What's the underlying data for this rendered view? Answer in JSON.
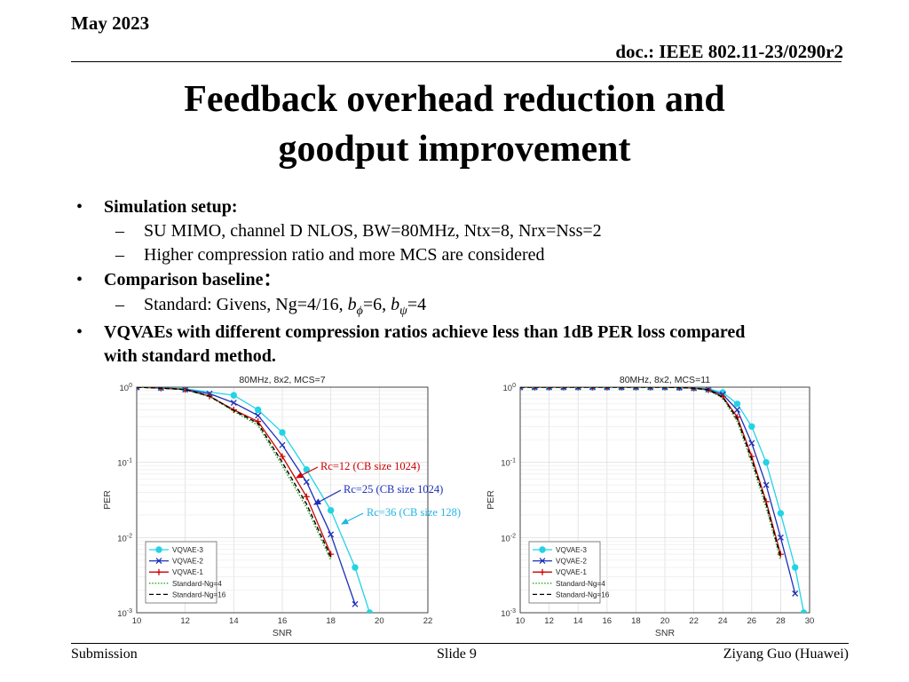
{
  "header": {
    "date": "May 2023",
    "doc": "doc.: IEEE 802.11-23/0290r2"
  },
  "title": {
    "line1": "Feedback overhead reduction and",
    "line2": "goodput improvement"
  },
  "bullets": {
    "setup_label": "Simulation setup:",
    "setup_items": [
      "SU MIMO, channel D NLOS, BW=80MHz, Ntx=8, Nrx=Nss=2",
      "Higher compression ratio and more MCS are considered"
    ],
    "baseline_label": "Comparison baseline：",
    "baseline_item_prefix": "Standard: Givens, Ng=4/16, ",
    "b_phi": "b",
    "phi_sub": "ϕ",
    "phi_val": "=6, ",
    "b_psi": "b",
    "psi_sub": "ψ",
    "psi_val": "=4",
    "result_line1": "VQVAEs with different compression ratios achieve less than 1dB PER loss compared",
    "result_line2": "with standard method."
  },
  "annotations": {
    "rc12": "Rc=12 (CB size 1024)",
    "rc25": "Rc=25 (CB size 1024)",
    "rc36": "Rc=36 (CB size 128)"
  },
  "colors": {
    "rc12": "#cc0000",
    "rc25": "#1c2fb8",
    "rc36": "#22b5e6"
  },
  "footer": {
    "left": "Submission",
    "center": "Slide 9",
    "right": "Ziyang Guo (Huawei)"
  },
  "chart_data": [
    {
      "type": "line",
      "title": "80MHz, 8x2, MCS=7",
      "xlabel": "SNR",
      "ylabel": "PER",
      "xlim": [
        10,
        22
      ],
      "ylim": [
        0.001,
        1
      ],
      "yscale": "log",
      "xticks": [
        10,
        12,
        14,
        16,
        18,
        20,
        22
      ],
      "yticks": [
        {
          "value": 1,
          "label": "10",
          "exp": "0"
        },
        {
          "value": 0.1,
          "label": "10",
          "exp": "-1"
        },
        {
          "value": 0.01,
          "label": "10",
          "exp": "-2"
        },
        {
          "value": 0.001,
          "label": "10",
          "exp": "-3"
        }
      ],
      "grid": true,
      "legend_position": "bottom-left",
      "series": [
        {
          "name": "VQVAE-3",
          "color": "#22d3e6",
          "marker": "circle",
          "style": "solid",
          "x": [
            10,
            11,
            12,
            14,
            15,
            16,
            17,
            18,
            19,
            19.6
          ],
          "y": [
            1,
            0.98,
            0.95,
            0.78,
            0.5,
            0.25,
            0.08,
            0.023,
            0.004,
            0.001
          ]
        },
        {
          "name": "VQVAE-2",
          "color": "#1c2fb8",
          "marker": "x",
          "style": "solid",
          "x": [
            10,
            11,
            12,
            13,
            14,
            15,
            16,
            17,
            18,
            19
          ],
          "y": [
            1,
            0.98,
            0.93,
            0.82,
            0.62,
            0.42,
            0.17,
            0.055,
            0.011,
            0.0013
          ]
        },
        {
          "name": "VQVAE-1",
          "color": "#cc0000",
          "marker": "plus",
          "style": "solid",
          "x": [
            10,
            11,
            12,
            13,
            14,
            15,
            16,
            17,
            18
          ],
          "y": [
            1,
            0.97,
            0.93,
            0.76,
            0.5,
            0.35,
            0.12,
            0.035,
            0.006
          ]
        },
        {
          "name": "Standard-Ng=4",
          "color": "#1fa81f",
          "marker": "none",
          "style": "dotted",
          "x": [
            10,
            11,
            12,
            13,
            14,
            15,
            16,
            17,
            18
          ],
          "y": [
            1,
            0.97,
            0.93,
            0.75,
            0.48,
            0.31,
            0.09,
            0.025,
            0.005
          ]
        },
        {
          "name": "Standard-Ng=16",
          "color": "#000000",
          "marker": "none",
          "style": "dashed",
          "x": [
            10,
            11,
            12,
            13,
            14,
            15,
            16,
            17,
            18
          ],
          "y": [
            1,
            0.97,
            0.93,
            0.76,
            0.49,
            0.33,
            0.1,
            0.028,
            0.0055
          ]
        }
      ]
    },
    {
      "type": "line",
      "title": "80MHz, 8x2, MCS=11",
      "xlabel": "SNR",
      "ylabel": "PER",
      "xlim": [
        10,
        30
      ],
      "ylim": [
        0.001,
        1
      ],
      "yscale": "log",
      "xticks": [
        10,
        12,
        14,
        16,
        18,
        20,
        22,
        24,
        26,
        28,
        30
      ],
      "yticks": [
        {
          "value": 1,
          "label": "10",
          "exp": "0"
        },
        {
          "value": 0.1,
          "label": "10",
          "exp": "-1"
        },
        {
          "value": 0.01,
          "label": "10",
          "exp": "-2"
        },
        {
          "value": 0.001,
          "label": "10",
          "exp": "-3"
        }
      ],
      "grid": true,
      "legend_position": "bottom-left",
      "series": [
        {
          "name": "VQVAE-3",
          "color": "#22d3e6",
          "marker": "circle",
          "style": "solid",
          "x": [
            10,
            11,
            12,
            13,
            14,
            15,
            16,
            17,
            18,
            19,
            20,
            21,
            22,
            23,
            24,
            25,
            26,
            27,
            28,
            29,
            29.6
          ],
          "y": [
            1,
            1,
            1,
            1,
            1,
            1,
            1,
            1,
            1,
            1,
            1,
            0.99,
            0.98,
            0.95,
            0.85,
            0.6,
            0.3,
            0.1,
            0.021,
            0.004,
            0.001
          ]
        },
        {
          "name": "VQVAE-2",
          "color": "#1c2fb8",
          "marker": "x",
          "style": "solid",
          "x": [
            10,
            11,
            12,
            13,
            14,
            15,
            16,
            17,
            18,
            19,
            20,
            21,
            22,
            23,
            24,
            25,
            26,
            27,
            28,
            29
          ],
          "y": [
            1,
            1,
            1,
            1,
            1,
            1,
            1,
            1,
            1,
            1,
            1,
            0.99,
            0.97,
            0.93,
            0.8,
            0.5,
            0.18,
            0.05,
            0.01,
            0.0018
          ]
        },
        {
          "name": "VQVAE-1",
          "color": "#cc0000",
          "marker": "plus",
          "style": "solid",
          "x": [
            10,
            11,
            12,
            13,
            14,
            15,
            16,
            17,
            18,
            19,
            20,
            21,
            22,
            23,
            24,
            25,
            26,
            27,
            28
          ],
          "y": [
            1,
            1,
            1,
            1,
            1,
            1,
            1,
            1,
            1,
            1,
            1,
            0.99,
            0.97,
            0.92,
            0.75,
            0.4,
            0.12,
            0.03,
            0.006
          ]
        },
        {
          "name": "Standard-Ng=4",
          "color": "#1fa81f",
          "marker": "none",
          "style": "dotted",
          "x": [
            10,
            11,
            12,
            13,
            14,
            15,
            16,
            17,
            18,
            19,
            20,
            21,
            22,
            23,
            24,
            25,
            26,
            27,
            28
          ],
          "y": [
            1,
            1,
            1,
            1,
            1,
            1,
            1,
            1,
            1,
            1,
            1,
            0.99,
            0.97,
            0.91,
            0.72,
            0.35,
            0.1,
            0.025,
            0.005
          ]
        },
        {
          "name": "Standard-Ng=16",
          "color": "#000000",
          "marker": "none",
          "style": "dashed",
          "x": [
            10,
            11,
            12,
            13,
            14,
            15,
            16,
            17,
            18,
            19,
            20,
            21,
            22,
            23,
            24,
            25,
            26,
            27,
            28
          ],
          "y": [
            1,
            1,
            1,
            1,
            1,
            1,
            1,
            1,
            1,
            1,
            1,
            0.99,
            0.97,
            0.92,
            0.74,
            0.38,
            0.11,
            0.028,
            0.0055
          ]
        }
      ]
    }
  ]
}
